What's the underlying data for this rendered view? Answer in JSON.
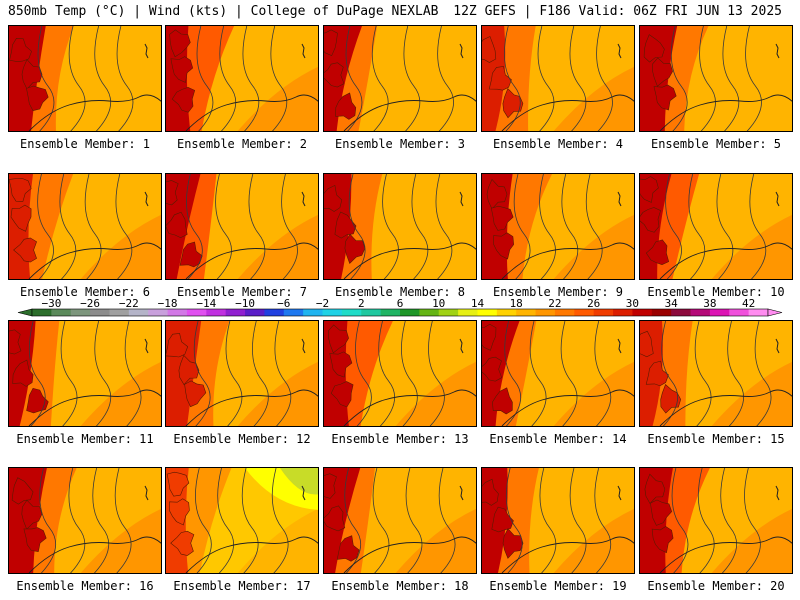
{
  "header": {
    "left": "850mb Temp (°C) | Wind (kts) | College of DuPage NEXLAB",
    "right": "12Z GEFS | F186 Valid: 06Z FRI JUN 13 2025"
  },
  "colorbar": {
    "tick_labels": [
      "−30",
      "−26",
      "−22",
      "−18",
      "−14",
      "−10",
      "−6",
      "−2",
      "2",
      "6",
      "10",
      "14",
      "18",
      "22",
      "26",
      "30",
      "34",
      "38",
      "42"
    ],
    "range": [
      -32,
      44
    ],
    "step": 2,
    "colors": [
      "#2c6e2c",
      "#5b8a5b",
      "#7d967d",
      "#8c8c8c",
      "#a0a0a0",
      "#b4b4c8",
      "#c8a0dc",
      "#d278e6",
      "#e050f0",
      "#c030e0",
      "#9020d0",
      "#5a1ec8",
      "#2040e0",
      "#1e78f0",
      "#20b4f0",
      "#20d2e6",
      "#20dcc8",
      "#20c8a0",
      "#20b464",
      "#1e9628",
      "#64b414",
      "#a0d214",
      "#e6f014",
      "#ffff00",
      "#ffd200",
      "#ffb400",
      "#ff9600",
      "#ff7800",
      "#ff5a00",
      "#f03c00",
      "#dc1e00",
      "#c00000",
      "#9a0000",
      "#8c0a3c",
      "#b40a78",
      "#dc14b4",
      "#f050dc",
      "#ff8cf0"
    ]
  },
  "panels": [
    {
      "caption": "Ensemble Member: 1",
      "west": 3,
      "mid": 1,
      "east": 0,
      "cool": 0
    },
    {
      "caption": "Ensemble Member: 2",
      "west": 3,
      "mid": 2,
      "east": 1,
      "cool": 0
    },
    {
      "caption": "Ensemble Member: 3",
      "west": 3,
      "mid": 1,
      "east": 0,
      "cool": 0
    },
    {
      "caption": "Ensemble Member: 4",
      "west": 2,
      "mid": 1,
      "east": 1,
      "cool": 0
    },
    {
      "caption": "Ensemble Member: 5",
      "west": 3,
      "mid": 1,
      "east": 0,
      "cool": 0
    },
    {
      "caption": "Ensemble Member: 6",
      "west": 2,
      "mid": 1,
      "east": 1,
      "cool": 0
    },
    {
      "caption": "Ensemble Member: 7",
      "west": 3,
      "mid": 2,
      "east": 1,
      "cool": 0
    },
    {
      "caption": "Ensemble Member: 8",
      "west": 3,
      "mid": 1,
      "east": 0,
      "cool": 0
    },
    {
      "caption": "Ensemble Member: 9",
      "west": 3,
      "mid": 1,
      "east": 1,
      "cool": 0
    },
    {
      "caption": "Ensemble Member: 10",
      "west": 3,
      "mid": 2,
      "east": 1,
      "cool": 0
    },
    {
      "caption": "Ensemble Member: 11",
      "west": 3,
      "mid": 1,
      "east": 1,
      "cool": 0
    },
    {
      "caption": "Ensemble Member: 12",
      "west": 2,
      "mid": 1,
      "east": 1,
      "cool": 0
    },
    {
      "caption": "Ensemble Member: 13",
      "west": 3,
      "mid": 2,
      "east": 1,
      "cool": 0
    },
    {
      "caption": "Ensemble Member: 14",
      "west": 3,
      "mid": 1,
      "east": 1,
      "cool": 0
    },
    {
      "caption": "Ensemble Member: 15",
      "west": 2,
      "mid": 1,
      "east": 1,
      "cool": 0
    },
    {
      "caption": "Ensemble Member: 16",
      "west": 3,
      "mid": 1,
      "east": 1,
      "cool": 0
    },
    {
      "caption": "Ensemble Member: 17",
      "west": 1,
      "mid": 0,
      "east": 0,
      "cool": 1
    },
    {
      "caption": "Ensemble Member: 18",
      "west": 3,
      "mid": 1,
      "east": 1,
      "cool": 0
    },
    {
      "caption": "Ensemble Member: 19",
      "west": 3,
      "mid": 1,
      "east": 1,
      "cool": 0
    },
    {
      "caption": "Ensemble Member: 20",
      "west": 3,
      "mid": 2,
      "east": 1,
      "cool": 0
    }
  ]
}
